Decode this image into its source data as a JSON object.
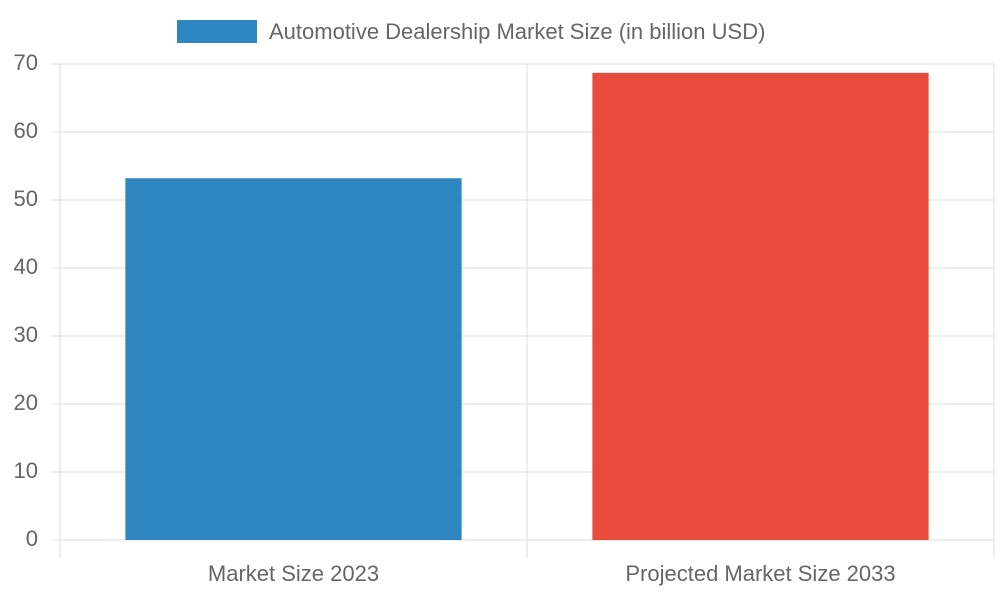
{
  "chart_data": {
    "type": "bar",
    "categories": [
      "Market Size 2023",
      "Projected Market Size 2033"
    ],
    "series": [
      {
        "name": "Automotive Dealership Market Size (in billion USD)",
        "colors": [
          "#2e86c1",
          "#e74c3c"
        ],
        "values": [
          53.2,
          68.7
        ]
      }
    ],
    "ylim": [
      0,
      70
    ],
    "yticks": [
      0,
      10,
      20,
      30,
      40,
      50,
      60,
      70
    ],
    "grid": true
  }
}
